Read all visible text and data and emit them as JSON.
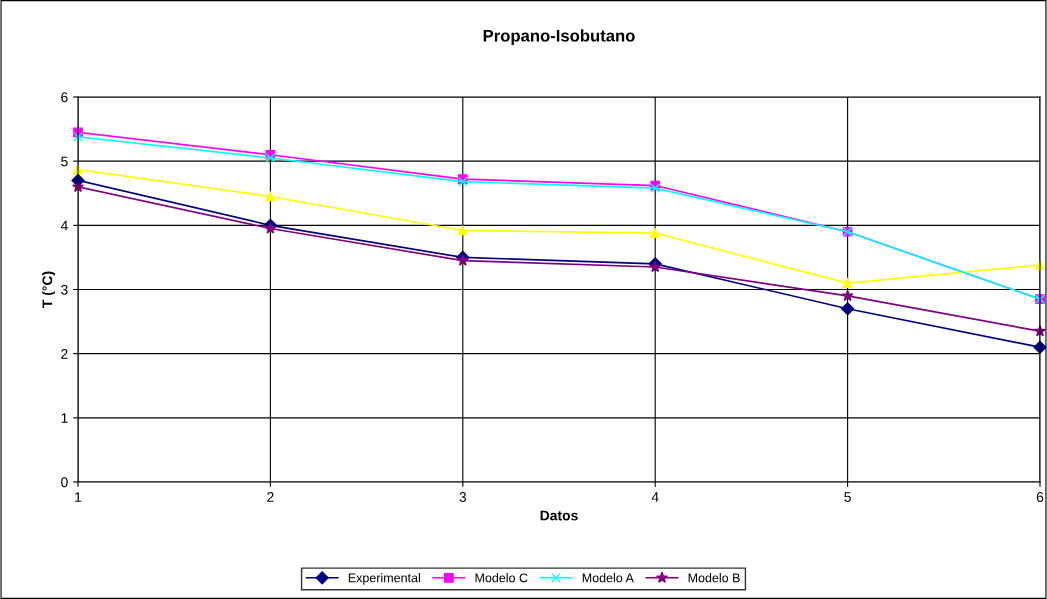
{
  "chart_data": {
    "type": "line",
    "title": "Propano-Isobutano",
    "xlabel": "Datos",
    "ylabel": "T (°C)",
    "x": [
      1,
      2,
      3,
      4,
      5,
      6
    ],
    "xlim": [
      1,
      6
    ],
    "xticks": [
      1,
      2,
      3,
      4,
      5,
      6
    ],
    "ylim": [
      0,
      6
    ],
    "yticks": [
      0,
      1,
      2,
      3,
      4,
      5,
      6
    ],
    "grid": true,
    "legend": "bottom",
    "series": [
      {
        "name": "Experimental",
        "color": "#000080",
        "marker": "diamond",
        "values": [
          4.7,
          4.0,
          3.5,
          3.4,
          2.7,
          2.1
        ]
      },
      {
        "name": "Modelo C",
        "color": "#ff00ff",
        "marker": "square",
        "values": [
          5.45,
          5.1,
          4.72,
          4.62,
          3.9,
          2.85
        ]
      },
      {
        "color": "#ffff00",
        "marker": "triangle",
        "values": [
          4.87,
          4.45,
          3.92,
          3.88,
          3.1,
          3.38
        ]
      },
      {
        "name": "Modelo A",
        "color": "#00ffff",
        "marker": "cross",
        "values": [
          5.38,
          5.05,
          4.68,
          4.58,
          3.9,
          2.85
        ]
      },
      {
        "name": "Modelo B",
        "color": "#800080",
        "marker": "star",
        "values": [
          4.6,
          3.95,
          3.45,
          3.35,
          2.9,
          2.35
        ]
      }
    ]
  }
}
